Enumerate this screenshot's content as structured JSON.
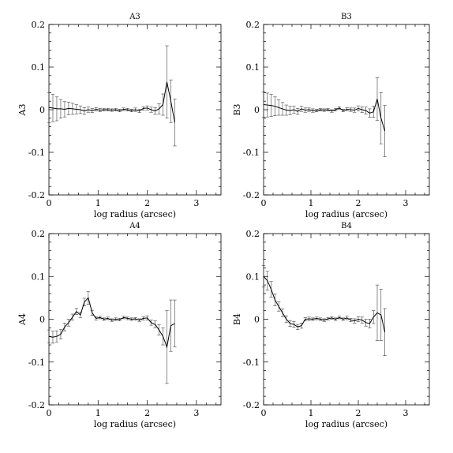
{
  "chart_data": [
    {
      "type": "line",
      "title": "A3",
      "xlabel": "log radius (arcsec)",
      "ylabel": "A3",
      "xlim": [
        0,
        3.5
      ],
      "ylim": [
        -0.2,
        0.2
      ],
      "xticks": [
        "0",
        "1",
        "2",
        "3"
      ],
      "yticks": [
        "-0.2",
        "-0.1",
        "0",
        "0.1",
        "0.2"
      ],
      "series": [
        {
          "x": [
            0.0,
            0.08,
            0.16,
            0.24,
            0.32,
            0.4,
            0.48,
            0.56,
            0.64,
            0.72,
            0.8,
            0.88,
            0.96,
            1.04,
            1.12,
            1.2,
            1.28,
            1.36,
            1.44,
            1.52,
            1.6,
            1.68,
            1.76,
            1.84,
            1.92,
            2.0,
            2.08,
            2.16,
            2.24,
            2.32,
            2.4,
            2.48,
            2.56
          ],
          "y": [
            0.005,
            0.004,
            0.002,
            0.002,
            0.001,
            0.003,
            0.002,
            0.001,
            0.0,
            -0.003,
            0.0,
            -0.002,
            0.001,
            -0.001,
            0.0,
            0.0,
            -0.001,
            0.0,
            -0.002,
            0.001,
            0.0,
            -0.002,
            0.0,
            -0.003,
            0.003,
            0.004,
            0.0,
            -0.003,
            0.002,
            0.012,
            0.065,
            0.02,
            -0.03
          ],
          "err": [
            0.035,
            0.032,
            0.028,
            0.022,
            0.018,
            0.015,
            0.013,
            0.011,
            0.009,
            0.008,
            0.006,
            0.005,
            0.004,
            0.004,
            0.003,
            0.003,
            0.003,
            0.003,
            0.003,
            0.003,
            0.003,
            0.003,
            0.004,
            0.004,
            0.004,
            0.005,
            0.006,
            0.008,
            0.012,
            0.025,
            0.085,
            0.05,
            0.055
          ]
        }
      ]
    },
    {
      "type": "line",
      "title": "B3",
      "xlabel": "log radius (arcsec)",
      "ylabel": "B3",
      "xlim": [
        0,
        3.5
      ],
      "ylim": [
        -0.2,
        0.2
      ],
      "xticks": [
        "0",
        "1",
        "2",
        "3"
      ],
      "yticks": [
        "-0.2",
        "-0.1",
        "0",
        "0.1",
        "0.2"
      ],
      "series": [
        {
          "x": [
            0.0,
            0.08,
            0.16,
            0.24,
            0.32,
            0.4,
            0.48,
            0.56,
            0.64,
            0.72,
            0.8,
            0.88,
            0.96,
            1.04,
            1.12,
            1.2,
            1.28,
            1.36,
            1.44,
            1.52,
            1.6,
            1.68,
            1.76,
            1.84,
            1.92,
            2.0,
            2.08,
            2.16,
            2.24,
            2.32,
            2.4,
            2.48,
            2.56
          ],
          "y": [
            0.012,
            0.011,
            0.01,
            0.008,
            0.005,
            0.002,
            -0.001,
            -0.002,
            0.0,
            -0.004,
            0.002,
            -0.001,
            0.0,
            -0.002,
            -0.002,
            0.0,
            -0.001,
            0.0,
            -0.003,
            0.0,
            0.004,
            -0.002,
            0.001,
            0.0,
            -0.001,
            0.003,
            0.0,
            -0.002,
            -0.008,
            -0.005,
            0.025,
            -0.02,
            -0.05
          ],
          "err": [
            0.03,
            0.028,
            0.026,
            0.022,
            0.018,
            0.015,
            0.012,
            0.01,
            0.008,
            0.007,
            0.006,
            0.005,
            0.004,
            0.004,
            0.003,
            0.003,
            0.003,
            0.003,
            0.003,
            0.003,
            0.003,
            0.003,
            0.004,
            0.004,
            0.005,
            0.006,
            0.007,
            0.008,
            0.01,
            0.013,
            0.05,
            0.06,
            0.06
          ]
        }
      ]
    },
    {
      "type": "line",
      "title": "A4",
      "xlabel": "log radius (arcsec)",
      "ylabel": "A4",
      "xlim": [
        0,
        3.5
      ],
      "ylim": [
        -0.2,
        0.2
      ],
      "xticks": [
        "0",
        "1",
        "2",
        "3"
      ],
      "yticks": [
        "-0.2",
        "-0.1",
        "0",
        "0.1",
        "0.2"
      ],
      "series": [
        {
          "x": [
            0.0,
            0.08,
            0.16,
            0.24,
            0.32,
            0.4,
            0.48,
            0.56,
            0.64,
            0.72,
            0.8,
            0.88,
            0.96,
            1.04,
            1.12,
            1.2,
            1.28,
            1.36,
            1.44,
            1.52,
            1.6,
            1.68,
            1.76,
            1.84,
            1.92,
            2.0,
            2.08,
            2.16,
            2.24,
            2.32,
            2.4,
            2.48,
            2.56
          ],
          "y": [
            -0.04,
            -0.042,
            -0.04,
            -0.035,
            -0.018,
            -0.008,
            0.005,
            0.018,
            0.01,
            0.04,
            0.05,
            0.015,
            0.002,
            0.004,
            0.0,
            0.002,
            -0.002,
            0.0,
            -0.001,
            0.004,
            0.002,
            0.0,
            0.001,
            -0.002,
            0.002,
            0.003,
            -0.008,
            -0.012,
            -0.025,
            -0.04,
            -0.065,
            -0.015,
            -0.01
          ],
          "err": [
            0.015,
            0.014,
            0.013,
            0.011,
            0.009,
            0.008,
            0.007,
            0.007,
            0.006,
            0.009,
            0.015,
            0.006,
            0.004,
            0.003,
            0.003,
            0.003,
            0.003,
            0.003,
            0.003,
            0.003,
            0.003,
            0.003,
            0.003,
            0.003,
            0.004,
            0.005,
            0.006,
            0.008,
            0.012,
            0.02,
            0.085,
            0.06,
            0.055
          ]
        }
      ]
    },
    {
      "type": "line",
      "title": "B4",
      "xlabel": "log radius (arcsec)",
      "ylabel": "B4",
      "xlim": [
        0,
        3.5
      ],
      "ylim": [
        -0.2,
        0.2
      ],
      "xticks": [
        "0",
        "1",
        "2",
        "3"
      ],
      "yticks": [
        "-0.2",
        "-0.1",
        "0",
        "0.1",
        "0.2"
      ],
      "series": [
        {
          "x": [
            0.0,
            0.08,
            0.16,
            0.24,
            0.32,
            0.4,
            0.48,
            0.56,
            0.64,
            0.72,
            0.8,
            0.88,
            0.96,
            1.04,
            1.12,
            1.2,
            1.28,
            1.36,
            1.44,
            1.52,
            1.6,
            1.68,
            1.76,
            1.84,
            1.92,
            2.0,
            2.08,
            2.16,
            2.24,
            2.32,
            2.4,
            2.48,
            2.56
          ],
          "y": [
            0.1,
            0.09,
            0.07,
            0.045,
            0.03,
            0.015,
            0.0,
            -0.01,
            -0.012,
            -0.018,
            -0.015,
            0.0,
            0.001,
            0.0,
            0.002,
            0.0,
            -0.002,
            0.001,
            0.003,
            0.0,
            0.004,
            0.0,
            0.003,
            -0.002,
            -0.004,
            0.0,
            -0.002,
            -0.008,
            -0.01,
            0.005,
            0.015,
            0.01,
            -0.03
          ],
          "err": [
            0.025,
            0.022,
            0.018,
            0.014,
            0.011,
            0.009,
            0.008,
            0.007,
            0.007,
            0.006,
            0.006,
            0.004,
            0.004,
            0.003,
            0.003,
            0.003,
            0.003,
            0.003,
            0.003,
            0.003,
            0.003,
            0.003,
            0.004,
            0.004,
            0.005,
            0.006,
            0.007,
            0.008,
            0.01,
            0.015,
            0.065,
            0.06,
            0.055
          ]
        }
      ]
    }
  ]
}
